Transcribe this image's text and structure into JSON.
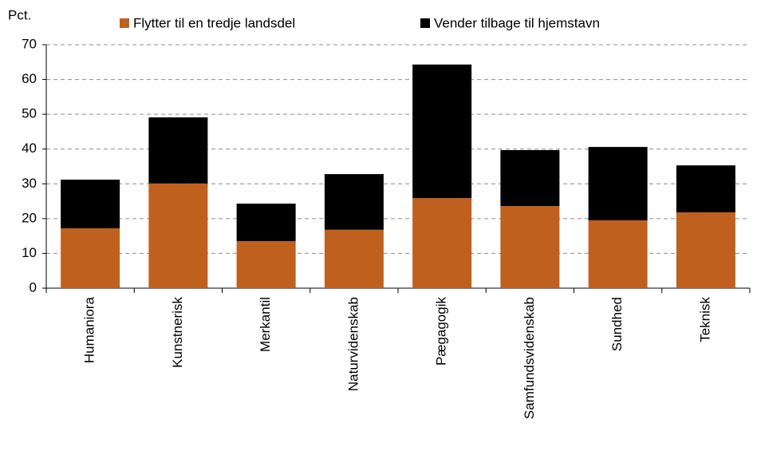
{
  "chart_data": {
    "type": "stacked_bar",
    "y_label": "Pct.",
    "categories": [
      "Humaniora",
      "Kunstnerisk",
      "Merkantil",
      "Naturvidenskab",
      "Pægagogik",
      "Samfundsvidenskab",
      "Sundhed",
      "Teknisk"
    ],
    "series": [
      {
        "name": "Flytter til en tredje landsdel",
        "color": "#c0601e",
        "values": [
          17.2,
          30.1,
          13.5,
          16.8,
          25.9,
          23.6,
          19.5,
          21.8
        ]
      },
      {
        "name": "Vender tilbage til hjemstavn",
        "color": "#000000",
        "values": [
          14.0,
          19.0,
          10.8,
          16.0,
          38.4,
          16.1,
          21.1,
          13.5
        ]
      }
    ],
    "ylim": [
      0,
      70
    ],
    "yticks": [
      0,
      10,
      20,
      30,
      40,
      50,
      60,
      70
    ],
    "grid": true,
    "legend": "top"
  }
}
